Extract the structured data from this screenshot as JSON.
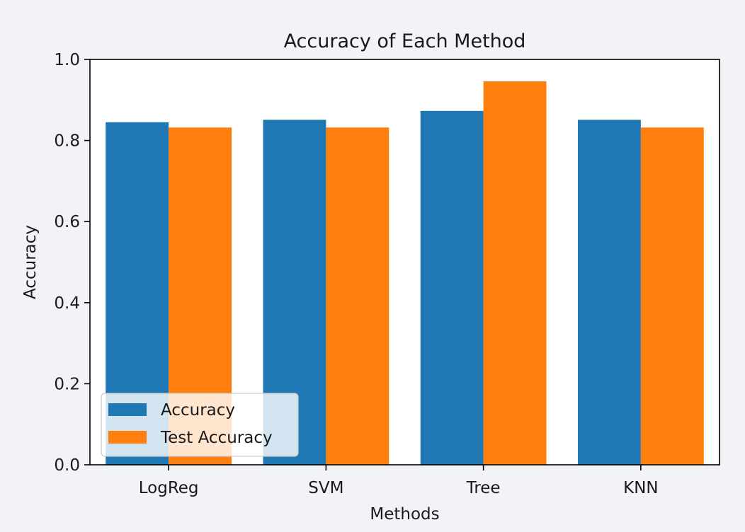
{
  "chart_data": {
    "type": "bar",
    "title": "Accuracy of Each Method",
    "xlabel": "Methods",
    "ylabel": "Accuracy",
    "categories": [
      "LogReg",
      "SVM",
      "Tree",
      "KNN"
    ],
    "series": [
      {
        "name": "Accuracy",
        "color": "#1f77b4",
        "values": [
          0.845,
          0.851,
          0.873,
          0.851
        ]
      },
      {
        "name": "Test Accuracy",
        "color": "#ff7f0e",
        "values": [
          0.832,
          0.832,
          0.946,
          0.832
        ]
      }
    ],
    "ylim": [
      0,
      1.0
    ],
    "yticks": [
      "0.0",
      "0.2",
      "0.4",
      "0.6",
      "0.8",
      "1.0"
    ],
    "grid": false,
    "legend_position": "lower-left"
  }
}
